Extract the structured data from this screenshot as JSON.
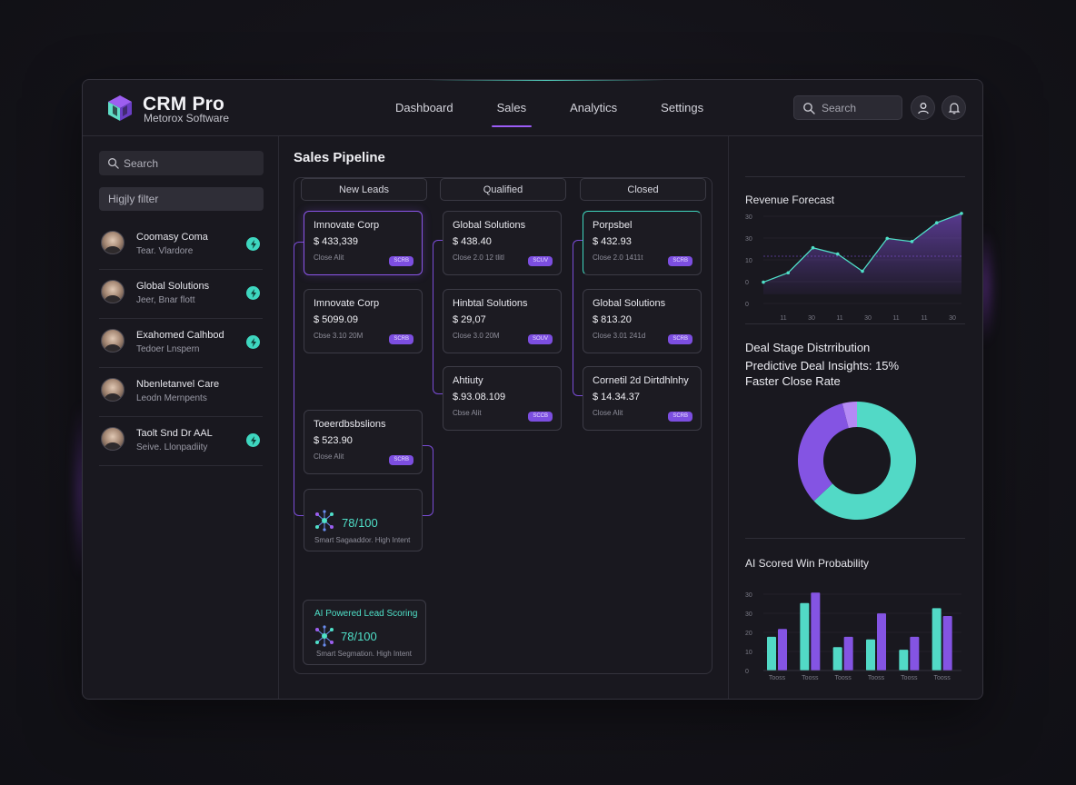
{
  "brand": {
    "title": "CRM Pro",
    "subtitle": "Metorox Software"
  },
  "nav": [
    {
      "label": "Dashboard",
      "active": false
    },
    {
      "label": "Sales",
      "active": true
    },
    {
      "label": "Analytics",
      "active": false
    },
    {
      "label": "Settings",
      "active": false
    }
  ],
  "header": {
    "search_placeholder": "Search"
  },
  "sidebar": {
    "search_placeholder": "Search",
    "filter_label": "Higjly filter",
    "contacts": [
      {
        "name": "Coomasy Coma",
        "sub": "Tear. Vlardore",
        "bolt": true
      },
      {
        "name": "Global Solutions",
        "sub": "Jeer, Bnar flott",
        "bolt": true
      },
      {
        "name": "Exahomed Calhbod",
        "sub": "Tedoer Lnspern",
        "bolt": true
      },
      {
        "name": "Nbenletanvel Care",
        "sub": "Leodn Mernpents",
        "bolt": false
      },
      {
        "name": "Taolt Snd Dr AAL",
        "sub": "Seive. Llonpadiity",
        "bolt": true
      }
    ]
  },
  "pipeline": {
    "title": "Sales Pipeline",
    "columns": [
      {
        "name": "New Leads",
        "cards": [
          {
            "name": "Imnovate Corp",
            "amount": "$ 433,339",
            "sub": "Close Alit",
            "chip": "SCRB"
          },
          {
            "name": "Imnovate Corp",
            "amount": "$ 5099.09",
            "sub": "Cbse 3.10 20M",
            "chip": "SCRB"
          },
          {
            "name": "Toeerdbsbslions",
            "amount": "$ 523.90",
            "sub": "Close Alit",
            "chip": "SCRB"
          }
        ],
        "score": {
          "value": "78/100",
          "sub": "Smart Sagaaddor. High Intent"
        }
      },
      {
        "name": "Qualified",
        "cards": [
          {
            "name": "Global Solutions",
            "amount": "$ 438.40",
            "sub": "Close 2.0 12 tlitl",
            "chip": "SCUV"
          },
          {
            "name": "Hinbtal Solutions",
            "amount": "$ 29,07",
            "sub": "Close 3.0 20M",
            "chip": "SOUV"
          },
          {
            "name": "Ahtiuty",
            "amount": "$.93.08.109",
            "sub": "Cbse Alit",
            "chip": "SCCB"
          }
        ]
      },
      {
        "name": "Closed",
        "cards": [
          {
            "name": "Porpsbel",
            "amount": "$ 432.93",
            "sub": "Close 2.0 1411t",
            "chip": "SCRB"
          },
          {
            "name": "Global Solutions",
            "amount": "$ 813.20",
            "sub": "Close 3.01 241d",
            "chip": "SCRB"
          },
          {
            "name": "Cornetil 2d Dirtdhlnhy",
            "amount": "$ 14.34.37",
            "sub": "Close Alit",
            "chip": "SCRB"
          }
        ]
      }
    ],
    "ai_scoring": {
      "title": "AI Powered Lead Scoring",
      "value": "78/100",
      "sub": "Smart Segmation. High Intent"
    }
  },
  "revenue_forecast": {
    "title": "Revenue Forecast",
    "chart_data": {
      "type": "line",
      "y_ticks": [
        "30",
        "30",
        "10",
        "0",
        "0"
      ],
      "x_ticks": [
        "11",
        "30",
        "11",
        "30",
        "11",
        "11",
        "30"
      ],
      "values": [
        0.2,
        0.8,
        2.4,
        2.0,
        0.9,
        3.0,
        2.8,
        4.0,
        4.6
      ],
      "ylim": [
        0,
        5
      ]
    }
  },
  "deal_stage": {
    "title": "Deal Stage Distrribution",
    "insight": "Predictive Deal Insights: 15% Faster Close Rate",
    "chart_data": {
      "type": "pie",
      "slices": [
        {
          "value": 63,
          "color": "#52d9c6"
        },
        {
          "value": 33,
          "color": "#8454e3"
        },
        {
          "value": 4,
          "color": "#b58af5"
        }
      ]
    }
  },
  "win_probability": {
    "title": "AI Scored Win Probability",
    "chart_data": {
      "type": "bar",
      "y_ticks": [
        "30",
        "30",
        "20",
        "10",
        "0"
      ],
      "categories": [
        "Tooss",
        "Tooss",
        "Tooss",
        "Tooss",
        "Tooss",
        "Tooss"
      ],
      "series": [
        {
          "values": [
            13,
            26,
            9,
            12,
            8,
            24
          ],
          "color": "#52d9c6"
        },
        {
          "values": [
            16,
            30,
            13,
            22,
            13,
            21
          ],
          "color": "#8454e3"
        }
      ],
      "ylim": [
        0,
        35
      ]
    }
  },
  "colors": {
    "accent_purple": "#8a55e8",
    "accent_teal": "#3fd6be",
    "bg": "#19181f"
  }
}
